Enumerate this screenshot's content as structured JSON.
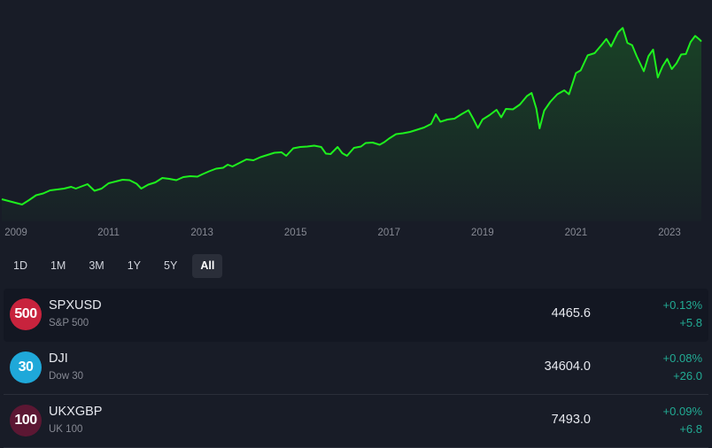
{
  "chart_data": {
    "type": "area",
    "line_color": "#1ef01e",
    "fill_color": "#1ef01e",
    "x_tick_labels": [
      "2009",
      "2011",
      "2013",
      "2015",
      "2017",
      "2019",
      "2021",
      "2023"
    ],
    "x_range": [
      2009.0,
      2023.7
    ],
    "y_range": [
      600,
      5000
    ],
    "grid": false,
    "points": [
      [
        2009.0,
        900
      ],
      [
        2009.15,
        780
      ],
      [
        2009.3,
        880
      ],
      [
        2009.45,
        990
      ],
      [
        2009.6,
        1030
      ],
      [
        2009.75,
        1100
      ],
      [
        2009.9,
        1120
      ],
      [
        2010.05,
        1140
      ],
      [
        2010.2,
        1180
      ],
      [
        2010.3,
        1140
      ],
      [
        2010.45,
        1200
      ],
      [
        2010.55,
        1240
      ],
      [
        2010.7,
        1090
      ],
      [
        2010.85,
        1140
      ],
      [
        2011.0,
        1260
      ],
      [
        2011.15,
        1300
      ],
      [
        2011.3,
        1340
      ],
      [
        2011.45,
        1330
      ],
      [
        2011.6,
        1250
      ],
      [
        2011.7,
        1140
      ],
      [
        2011.85,
        1230
      ],
      [
        2012.0,
        1280
      ],
      [
        2012.15,
        1380
      ],
      [
        2012.3,
        1360
      ],
      [
        2012.45,
        1330
      ],
      [
        2012.6,
        1400
      ],
      [
        2012.75,
        1420
      ],
      [
        2012.9,
        1410
      ],
      [
        2013.0,
        1460
      ],
      [
        2013.15,
        1530
      ],
      [
        2013.3,
        1590
      ],
      [
        2013.45,
        1610
      ],
      [
        2013.55,
        1680
      ],
      [
        2013.65,
        1640
      ],
      [
        2013.8,
        1720
      ],
      [
        2013.95,
        1800
      ],
      [
        2014.1,
        1780
      ],
      [
        2014.25,
        1850
      ],
      [
        2014.4,
        1900
      ],
      [
        2014.55,
        1950
      ],
      [
        2014.7,
        1960
      ],
      [
        2014.8,
        1880
      ],
      [
        2014.95,
        2050
      ],
      [
        2015.1,
        2080
      ],
      [
        2015.25,
        2090
      ],
      [
        2015.4,
        2110
      ],
      [
        2015.55,
        2080
      ],
      [
        2015.65,
        1930
      ],
      [
        2015.75,
        1920
      ],
      [
        2015.9,
        2080
      ],
      [
        2016.0,
        1940
      ],
      [
        2016.1,
        1880
      ],
      [
        2016.25,
        2060
      ],
      [
        2016.4,
        2090
      ],
      [
        2016.5,
        2170
      ],
      [
        2016.65,
        2180
      ],
      [
        2016.8,
        2130
      ],
      [
        2016.9,
        2190
      ],
      [
        2017.0,
        2270
      ],
      [
        2017.15,
        2370
      ],
      [
        2017.3,
        2390
      ],
      [
        2017.45,
        2420
      ],
      [
        2017.6,
        2470
      ],
      [
        2017.75,
        2520
      ],
      [
        2017.9,
        2600
      ],
      [
        2018.0,
        2820
      ],
      [
        2018.1,
        2650
      ],
      [
        2018.25,
        2700
      ],
      [
        2018.4,
        2720
      ],
      [
        2018.55,
        2820
      ],
      [
        2018.7,
        2910
      ],
      [
        2018.8,
        2720
      ],
      [
        2018.9,
        2510
      ],
      [
        2019.0,
        2700
      ],
      [
        2019.15,
        2800
      ],
      [
        2019.3,
        2920
      ],
      [
        2019.4,
        2750
      ],
      [
        2019.5,
        2940
      ],
      [
        2019.65,
        2930
      ],
      [
        2019.8,
        3040
      ],
      [
        2019.95,
        3230
      ],
      [
        2020.05,
        3300
      ],
      [
        2020.15,
        2950
      ],
      [
        2020.22,
        2500
      ],
      [
        2020.32,
        2900
      ],
      [
        2020.45,
        3100
      ],
      [
        2020.6,
        3270
      ],
      [
        2020.75,
        3360
      ],
      [
        2020.85,
        3270
      ],
      [
        2021.0,
        3750
      ],
      [
        2021.1,
        3810
      ],
      [
        2021.25,
        4150
      ],
      [
        2021.4,
        4200
      ],
      [
        2021.55,
        4390
      ],
      [
        2021.65,
        4520
      ],
      [
        2021.75,
        4350
      ],
      [
        2021.9,
        4670
      ],
      [
        2022.0,
        4770
      ],
      [
        2022.1,
        4430
      ],
      [
        2022.2,
        4380
      ],
      [
        2022.3,
        4130
      ],
      [
        2022.45,
        3790
      ],
      [
        2022.55,
        4130
      ],
      [
        2022.65,
        4280
      ],
      [
        2022.75,
        3650
      ],
      [
        2022.85,
        3900
      ],
      [
        2022.95,
        4070
      ],
      [
        2023.05,
        3840
      ],
      [
        2023.15,
        3970
      ],
      [
        2023.25,
        4170
      ],
      [
        2023.35,
        4180
      ],
      [
        2023.45,
        4450
      ],
      [
        2023.55,
        4590
      ],
      [
        2023.65,
        4500
      ],
      [
        2023.7,
        4465
      ]
    ]
  },
  "range_tabs": [
    {
      "label": "1D",
      "active": false
    },
    {
      "label": "1M",
      "active": false
    },
    {
      "label": "3M",
      "active": false
    },
    {
      "label": "1Y",
      "active": false
    },
    {
      "label": "5Y",
      "active": false
    },
    {
      "label": "All",
      "active": true
    }
  ],
  "tickers": [
    {
      "badge": "500",
      "badge_color": "#c8233d",
      "symbol": "SPXUSD",
      "name": "S&P 500",
      "price": "4465.6",
      "change_pct": "+0.13%",
      "change_abs": "+5.8",
      "selected": true
    },
    {
      "badge": "30",
      "badge_color": "#1fa8d9",
      "symbol": "DJI",
      "name": "Dow 30",
      "price": "34604.0",
      "change_pct": "+0.08%",
      "change_abs": "+26.0",
      "selected": false
    },
    {
      "badge": "100",
      "badge_color": "#5c1733",
      "symbol": "UKXGBP",
      "name": "UK 100",
      "price": "7493.0",
      "change_pct": "+0.09%",
      "change_abs": "+6.8",
      "selected": false
    }
  ],
  "colors": {
    "positive": "#22ab94",
    "background": "#181c27"
  }
}
